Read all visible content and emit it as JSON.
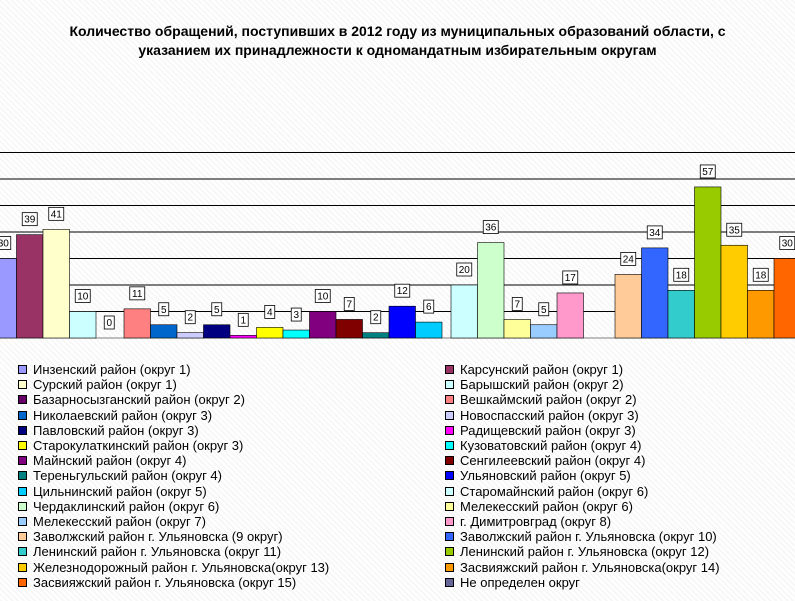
{
  "chart_data": {
    "type": "bar",
    "title": "Количество обращений, поступивших в 2012 году из муниципальных образований области, с указанием их принадлежности к одномандатным избирательным округам",
    "title_lines": [
      "Количество обращений, поступивших в 2012 году из муниципальных образований области, с",
      "указанием их принадлежности к одномандатным избирательным округам"
    ],
    "xlabel": "",
    "ylabel": "",
    "ylim": [
      0,
      70
    ],
    "grid": true,
    "legend_position": "bottom",
    "series": [
      {
        "name": "Инзенский район (округ 1)",
        "value": 30,
        "color": "#9999FF"
      },
      {
        "name": "Карсунский район (округ 1)",
        "value": 39,
        "color": "#993366"
      },
      {
        "name": "Сурский район (округ 1)",
        "value": 41,
        "color": "#FFFFCC"
      },
      {
        "name": "Барышский район (округ 2)",
        "value": 10,
        "color": "#CCFFFF"
      },
      {
        "name": "Базарносызганский район (округ 2)",
        "value": 0,
        "color": "#660066"
      },
      {
        "name": "Вешкаймский район (округ 2)",
        "value": 11,
        "color": "#FF8080"
      },
      {
        "name": "Николаевский район (округ 3)",
        "value": 5,
        "color": "#0066CC"
      },
      {
        "name": "Новоспасский район (округ 3)",
        "value": 2,
        "color": "#CCCCFF"
      },
      {
        "name": "Павловский район (округ 3)",
        "value": 5,
        "color": "#000080"
      },
      {
        "name": "Радищевский район (округ 3)",
        "value": 1,
        "color": "#FF00FF"
      },
      {
        "name": "Старокулаткинский район (округ 3)",
        "value": 4,
        "color": "#FFFF00"
      },
      {
        "name": "Кузоватовский район (округ 4)",
        "value": 3,
        "color": "#00FFFF"
      },
      {
        "name": "Майнский район (округ 4)",
        "value": 10,
        "color": "#800080"
      },
      {
        "name": "Сенгилеевский район (округ 4)",
        "value": 7,
        "color": "#800000"
      },
      {
        "name": "Тереньгульский район (округ 4)",
        "value": 2,
        "color": "#008080"
      },
      {
        "name": "Ульяновский район (округ 5)",
        "value": 12,
        "color": "#0000FF"
      },
      {
        "name": "Цильнинский район (округ 5)",
        "value": 6,
        "color": "#00CCFF"
      },
      {
        "name": "Старомайнский район (округ 6)",
        "value": 20,
        "color": "#CCFFFF"
      },
      {
        "name": "Чердаклинский район (округ 6)",
        "value": 36,
        "color": "#CCFFCC"
      },
      {
        "name": "Мелекесский район (округ 6)",
        "value": 7,
        "color": "#FFFF99"
      },
      {
        "name": "Мелекесский район (округ 7)",
        "value": 5,
        "color": "#99CCFF"
      },
      {
        "name": "г. Димитровград (округ 8)",
        "value": 17,
        "color": "#FF99CC"
      },
      {
        "name": "Заволжский район г. Ульяновска (9 округ)",
        "value": 24,
        "color": "#FFCC99"
      },
      {
        "name": "Заволжский район г. Ульяновска (округ 10)",
        "value": 34,
        "color": "#3366FF"
      },
      {
        "name": "Ленинский район г. Ульяновска (округ 11)",
        "value": 18,
        "color": "#33CCCC"
      },
      {
        "name": "Ленинский район г. Ульяновска (округ 12)",
        "value": 57,
        "color": "#99CC00"
      },
      {
        "name": "Железнодорожный район г. Ульяновска(округ 13)",
        "value": 35,
        "color": "#FFCC00"
      },
      {
        "name": "Засвияжский район г. Ульяновска(округ 14)",
        "value": 18,
        "color": "#FF9900"
      },
      {
        "name": "Засвияжский район г. Ульяновска (округ 15)",
        "value": 30,
        "color": "#FF6600"
      },
      {
        "name": "Не определен округ",
        "value": null,
        "color": "#666699"
      }
    ]
  }
}
